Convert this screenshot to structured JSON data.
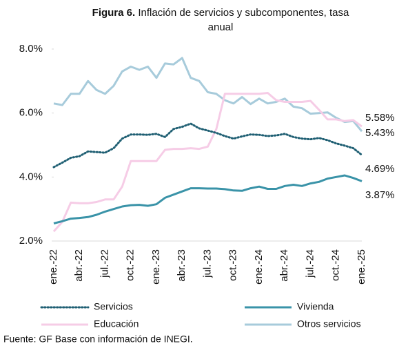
{
  "chart_data": {
    "type": "line",
    "title_prefix": "Figura 6.",
    "title": "Inflación de servicios y subcomponentes, tasa anual",
    "source": "Fuente: GF Base con información de INEGI.",
    "categories": [
      "ene.-22",
      null,
      null,
      "abr.-22",
      null,
      null,
      "jul.-22",
      null,
      null,
      "oct.-22",
      null,
      null,
      "ene.-23",
      null,
      null,
      "abr.-23",
      null,
      null,
      "jul.-23",
      null,
      null,
      "oct.-23",
      null,
      null,
      "ene.-24",
      null,
      null,
      "abr.-24",
      null,
      null,
      "jul.-24",
      null,
      null,
      "oct.-24",
      null,
      null,
      "ene.-25"
    ],
    "ylim": [
      2,
      8
    ],
    "yticks": [
      {
        "value": 2,
        "label": "2.0%"
      },
      {
        "value": 4,
        "label": "4.0%"
      },
      {
        "value": 6,
        "label": "6.0%"
      },
      {
        "value": 8,
        "label": "8.0%"
      }
    ],
    "series": [
      {
        "name": "Servicios",
        "color": "#1f5f73",
        "dashed": true,
        "values": [
          4.31,
          4.45,
          4.6,
          4.65,
          4.8,
          4.78,
          4.76,
          4.9,
          5.2,
          5.33,
          5.33,
          5.32,
          5.35,
          5.25,
          5.5,
          5.57,
          5.67,
          5.52,
          5.45,
          5.38,
          5.28,
          5.2,
          5.27,
          5.33,
          5.32,
          5.28,
          5.3,
          5.35,
          5.25,
          5.2,
          5.18,
          5.22,
          5.15,
          5.05,
          4.98,
          4.9,
          4.69
        ],
        "value_labels": [
          null,
          null,
          null,
          null,
          null,
          null,
          null,
          null,
          null,
          null,
          null,
          null,
          null,
          null,
          null,
          null,
          null,
          null,
          null,
          null,
          null,
          null,
          null,
          null,
          null,
          null,
          null,
          null,
          null,
          null,
          null,
          null,
          null,
          null,
          null,
          null,
          "4.69%"
        ]
      },
      {
        "name": "Vivienda",
        "color": "#3a93a8",
        "dashed": false,
        "values": [
          2.55,
          2.62,
          2.7,
          2.72,
          2.75,
          2.82,
          2.92,
          3.0,
          3.08,
          3.12,
          3.13,
          3.1,
          3.15,
          3.35,
          3.45,
          3.55,
          3.65,
          3.65,
          3.64,
          3.64,
          3.62,
          3.58,
          3.57,
          3.65,
          3.7,
          3.63,
          3.63,
          3.72,
          3.76,
          3.72,
          3.8,
          3.85,
          3.95,
          4.0,
          4.05,
          3.97,
          3.87
        ],
        "value_labels": [
          null,
          null,
          null,
          null,
          null,
          null,
          null,
          null,
          null,
          null,
          null,
          null,
          null,
          null,
          null,
          null,
          null,
          null,
          null,
          null,
          null,
          null,
          null,
          null,
          null,
          null,
          null,
          null,
          null,
          null,
          null,
          null,
          null,
          null,
          null,
          null,
          "3.87%"
        ]
      },
      {
        "name": "Educación",
        "color": "#f6cce6",
        "dashed": false,
        "values": [
          2.3,
          2.6,
          3.2,
          3.18,
          3.18,
          3.22,
          3.3,
          3.3,
          3.7,
          4.5,
          4.5,
          4.5,
          4.5,
          4.85,
          4.88,
          4.88,
          4.9,
          4.88,
          4.95,
          5.5,
          6.6,
          6.6,
          6.6,
          6.6,
          6.6,
          6.63,
          6.4,
          6.35,
          6.35,
          6.35,
          6.38,
          6.1,
          5.8,
          5.8,
          5.75,
          5.78,
          5.58
        ],
        "value_labels": [
          null,
          null,
          null,
          null,
          null,
          null,
          null,
          null,
          null,
          null,
          null,
          null,
          null,
          null,
          null,
          null,
          null,
          null,
          null,
          null,
          null,
          null,
          null,
          null,
          null,
          null,
          null,
          null,
          null,
          null,
          null,
          null,
          null,
          null,
          null,
          null,
          "5.58%"
        ]
      },
      {
        "name": "Otros servicios",
        "color": "#a7cbdb",
        "dashed": false,
        "values": [
          6.3,
          6.25,
          6.6,
          6.6,
          7.0,
          6.72,
          6.6,
          6.85,
          7.3,
          7.45,
          7.35,
          7.45,
          7.1,
          7.55,
          7.52,
          7.72,
          7.1,
          7.0,
          6.65,
          6.6,
          6.4,
          6.3,
          6.5,
          6.28,
          6.45,
          6.3,
          6.35,
          6.45,
          6.2,
          6.15,
          5.98,
          6.0,
          6.02,
          5.85,
          5.72,
          5.75,
          5.43
        ],
        "value_labels": [
          null,
          null,
          null,
          null,
          null,
          null,
          null,
          null,
          null,
          null,
          null,
          null,
          null,
          null,
          null,
          null,
          null,
          null,
          null,
          null,
          null,
          null,
          null,
          null,
          null,
          null,
          null,
          null,
          null,
          null,
          null,
          null,
          null,
          null,
          null,
          null,
          "5.43%"
        ]
      }
    ]
  }
}
